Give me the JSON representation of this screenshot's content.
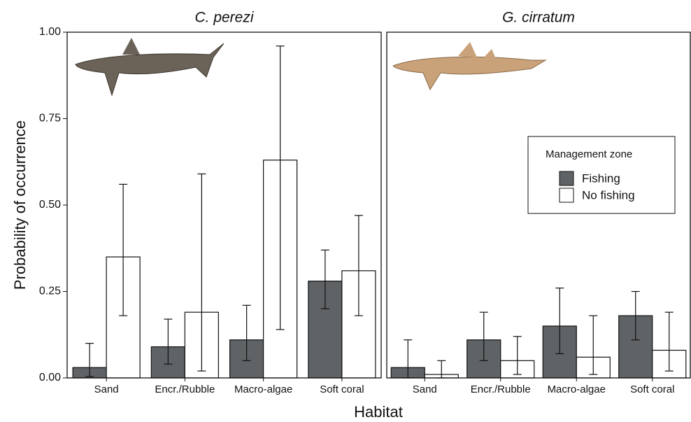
{
  "xlabel": "Habitat",
  "chart_data": [
    {
      "type": "bar",
      "title": "C. perezi",
      "ylabel": "Probability of occurrence",
      "categories": [
        "Sand",
        "Encr./Rubble",
        "Macro-algae",
        "Soft coral"
      ],
      "ylim": [
        0,
        1
      ],
      "yticks": [
        {
          "value": 0,
          "label": "0.00"
        },
        {
          "value": 0.25,
          "label": "0.25"
        },
        {
          "value": 0.5,
          "label": "0.50"
        },
        {
          "value": 0.75,
          "label": "0.75"
        },
        {
          "value": 1,
          "label": "1.00"
        }
      ],
      "series": [
        {
          "color": "#5f6366",
          "values": [
            0.03,
            0.09,
            0.11,
            0.28
          ],
          "error_low": [
            0.004,
            0.04,
            0.05,
            0.2
          ],
          "error_high": [
            0.1,
            0.17,
            0.21,
            0.37
          ]
        },
        {
          "color": "#ffffff",
          "values": [
            0.35,
            0.19,
            0.63,
            0.31
          ],
          "error_low": [
            0.18,
            0.02,
            0.14,
            0.18
          ],
          "error_high": [
            0.56,
            0.59,
            0.96,
            0.47
          ]
        }
      ]
    },
    {
      "type": "bar",
      "title": "G. cirratum",
      "categories": [
        "Sand",
        "Encr./Rubble",
        "Macro-algae",
        "Soft coral"
      ],
      "ylim": [
        0,
        1
      ],
      "legend_title": "Management zone",
      "series": [
        {
          "name": "Fishing",
          "color": "#5f6366",
          "values": [
            0.03,
            0.11,
            0.15,
            0.18
          ],
          "error_low": [
            0.0,
            0.05,
            0.07,
            0.11
          ],
          "error_high": [
            0.11,
            0.19,
            0.26,
            0.25
          ]
        },
        {
          "name": "No fishing",
          "color": "#ffffff",
          "values": [
            0.01,
            0.05,
            0.06,
            0.08
          ],
          "error_low": [
            0.0,
            0.01,
            0.01,
            0.02
          ],
          "error_high": [
            0.05,
            0.12,
            0.18,
            0.19
          ]
        }
      ]
    }
  ]
}
